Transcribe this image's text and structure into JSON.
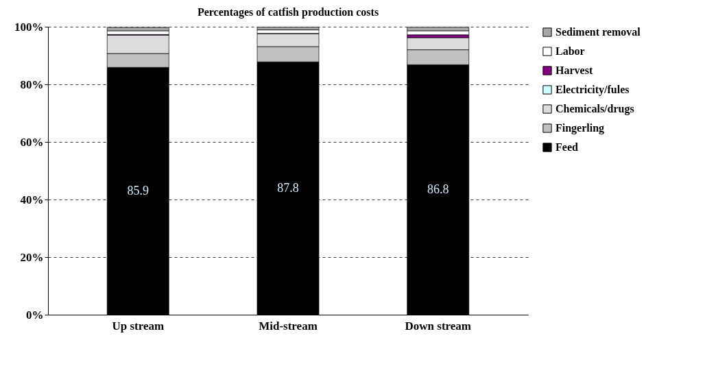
{
  "chart_data": {
    "type": "bar",
    "title": "Percentages of catfish production costs",
    "stacked": true,
    "categories": [
      "Up stream",
      "Mid-stream",
      "Down stream"
    ],
    "series": [
      {
        "name": "Feed",
        "color": "#000000",
        "values": [
          85.9,
          87.8,
          86.8
        ],
        "value_labels": [
          "85.9",
          "87.8",
          "86.8"
        ]
      },
      {
        "name": "Fingerling",
        "color": "#c0c0c0",
        "values": [
          4.8,
          5.3,
          5.2
        ]
      },
      {
        "name": "Chemicals/drugs",
        "color": "#dcdcdc",
        "values": [
          6.4,
          4.5,
          4.2
        ]
      },
      {
        "name": "Electricity/fules",
        "color": "#ccffff",
        "values": [
          null,
          null,
          null
        ]
      },
      {
        "name": "Harvest",
        "color": "#800080",
        "values": [
          0.2,
          0.1,
          1.0
        ]
      },
      {
        "name": "Labor",
        "color": "#ffffff",
        "values": [
          1.3,
          1.2,
          1.4
        ]
      },
      {
        "name": "Sediment removal",
        "color": "#a6a6a6",
        "values": [
          1.2,
          1.0,
          1.3
        ]
      }
    ],
    "ylim": [
      0,
      100
    ],
    "yticks": [
      {
        "value": 0,
        "label": "0%"
      },
      {
        "value": 20,
        "label": "20%"
      },
      {
        "value": 40,
        "label": "40%"
      },
      {
        "value": 60,
        "label": "60%"
      },
      {
        "value": 80,
        "label": "80%"
      },
      {
        "value": 100,
        "label": "100%"
      }
    ],
    "grid": true,
    "legend": "right"
  }
}
